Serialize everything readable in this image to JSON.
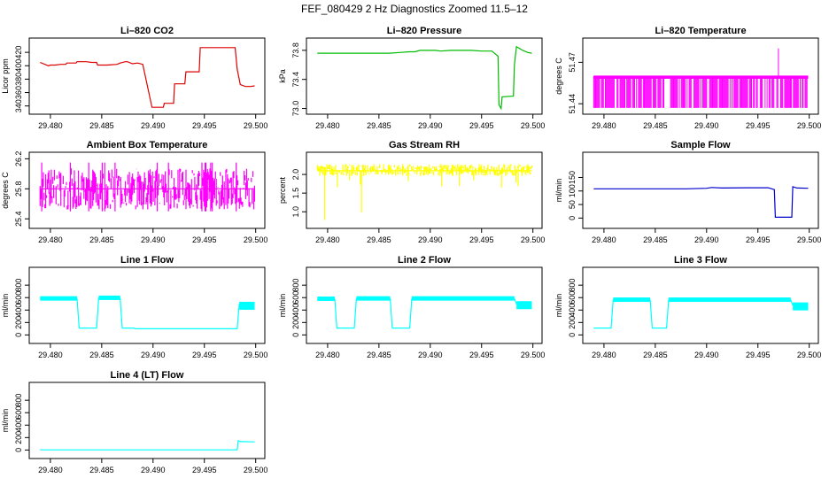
{
  "page_title": "FEF_080429  2 Hz Diagnostics Zoomed 11.5–12",
  "chart_data": [
    {
      "type": "line",
      "title": "Li–820 CO2",
      "ylabel": "Licor ppm",
      "color": "#dd0000",
      "xlim": [
        29.4788,
        29.5002
      ],
      "ylim": [
        333,
        436
      ],
      "yticks": [
        340,
        360,
        380,
        400,
        420
      ],
      "xticks": [
        "29.480",
        "29.485",
        "29.490",
        "29.495",
        "29.500"
      ],
      "series": [
        {
          "x": [
            29.479,
            29.4798,
            29.48,
            29.4805,
            29.481,
            29.4815,
            29.4816,
            29.4825,
            29.4826,
            29.4835,
            29.484,
            29.4845,
            29.4846,
            29.4855,
            29.4865,
            29.4868,
            29.4873,
            29.4875,
            29.488,
            29.4885,
            29.489,
            29.4899,
            29.49,
            29.4901,
            29.491,
            29.4911,
            29.492,
            29.4921,
            29.4931,
            29.4932,
            29.4945,
            29.4946,
            29.4975,
            29.498,
            29.4982,
            29.4985,
            29.499,
            29.4995,
            29.4999
          ],
          "y": [
            405,
            400,
            401,
            401,
            402,
            402,
            404,
            404,
            406,
            406,
            405,
            405,
            401,
            401,
            402,
            404,
            406,
            406,
            403,
            404,
            402,
            338,
            338,
            338,
            338,
            344,
            344,
            373,
            373,
            391,
            391,
            427,
            427,
            427,
            395,
            372,
            369,
            369,
            370
          ]
        }
      ]
    },
    {
      "type": "line",
      "title": "Li–820 Pressure",
      "ylabel": "kPa",
      "color": "#00bb00",
      "xlim": [
        29.4788,
        29.5002
      ],
      "ylim": [
        72.97,
        73.92
      ],
      "yticks": [
        "73.0",
        "73.4",
        "73.8"
      ],
      "xticks": [
        "29.480",
        "29.485",
        "29.490",
        "29.495",
        "29.500"
      ],
      "series": [
        {
          "x": [
            29.479,
            29.48,
            29.481,
            29.482,
            29.483,
            29.484,
            29.485,
            29.486,
            29.487,
            29.488,
            29.4885,
            29.489,
            29.4895,
            29.49,
            29.4905,
            29.491,
            29.492,
            29.493,
            29.494,
            29.495,
            29.496,
            29.4966,
            29.4967,
            29.4969,
            29.497,
            29.4981,
            29.4982,
            29.4984,
            29.499,
            29.4995,
            29.4999
          ],
          "y": [
            73.76,
            73.76,
            73.76,
            73.76,
            73.76,
            73.76,
            73.76,
            73.76,
            73.77,
            73.78,
            73.78,
            73.8,
            73.8,
            73.8,
            73.8,
            73.79,
            73.8,
            73.8,
            73.8,
            73.79,
            73.79,
            73.72,
            73.05,
            73.0,
            73.16,
            73.17,
            73.6,
            73.85,
            73.8,
            73.77,
            73.76
          ]
        }
      ]
    },
    {
      "type": "line",
      "title": "Li–820 Temperature",
      "ylabel": "degrees C",
      "color": "#ff00ff",
      "xlim": [
        29.4788,
        29.5002
      ],
      "ylim": [
        51.435,
        51.485
      ],
      "yticks": [
        "51.44",
        "51.47"
      ],
      "xticks": [
        "29.480",
        "29.485",
        "29.490",
        "29.495",
        "29.500"
      ],
      "series": [
        {
          "x": [
            29.479,
            29.4999
          ],
          "y": [
            51.46,
            51.46
          ]
        }
      ]
    },
    {
      "type": "line",
      "title": "Ambient Box Temperature",
      "ylabel": "degrees C",
      "color": "#ff00ff",
      "xlim": [
        29.4788,
        29.5002
      ],
      "ylim": [
        25.32,
        26.24
      ],
      "yticks": [
        "25.4",
        "25.8",
        "26.2"
      ],
      "xticks": [
        "29.480",
        "29.485",
        "29.490",
        "29.495",
        "29.500"
      ],
      "series": [
        {
          "x": [
            29.479,
            29.4999
          ],
          "y": [
            25.8,
            25.8
          ]
        }
      ]
    },
    {
      "type": "line",
      "title": "Gas Stream RH",
      "ylabel": "percent",
      "color": "#ffff00",
      "xlim": [
        29.4788,
        29.5002
      ],
      "ylim": [
        0.65,
        2.5
      ],
      "yticks": [
        "1.0",
        "1.5",
        "2.0"
      ],
      "xticks": [
        "29.480",
        "29.485",
        "29.490",
        "29.495",
        "29.500"
      ],
      "series": [
        {
          "x": [
            29.479,
            29.4999
          ],
          "y": [
            2.1,
            2.1
          ]
        }
      ]
    },
    {
      "type": "line",
      "title": "Sample Flow",
      "ylabel": "ml/min",
      "color": "#0000cc",
      "xlim": [
        29.4788,
        29.5002
      ],
      "ylim": [
        -25,
        230
      ],
      "yticks": [
        0,
        50,
        100,
        150
      ],
      "xticks": [
        "29.480",
        "29.485",
        "29.490",
        "29.495",
        "29.500"
      ],
      "series": [
        {
          "x": [
            29.479,
            29.485,
            29.488,
            29.49,
            29.4905,
            29.4915,
            29.494,
            29.496,
            29.4966,
            29.4967,
            29.4983,
            29.4984,
            29.4988,
            29.4999
          ],
          "y": [
            108,
            108,
            108,
            110,
            113,
            111,
            112,
            112,
            105,
            3,
            3,
            116,
            111,
            110
          ]
        }
      ]
    },
    {
      "type": "line",
      "title": "Line 1 Flow",
      "ylabel": "ml/min",
      "color": "#00ffff",
      "xlim": [
        29.4788,
        29.5002
      ],
      "ylim": [
        -80,
        1030
      ],
      "yticks": [
        0,
        200,
        400,
        600,
        800
      ],
      "xticks": [
        "29.480",
        "29.485",
        "29.490",
        "29.495",
        "29.500"
      ],
      "series": [
        {
          "x": [
            29.479,
            29.4826,
            29.4828,
            29.4845,
            29.4847,
            29.4868,
            29.487,
            29.4881,
            29.4883,
            29.4982,
            29.4984,
            29.4999
          ],
          "y": [
            580,
            580,
            110,
            110,
            590,
            590,
            110,
            110,
            100,
            100,
            490,
            490
          ]
        }
      ]
    },
    {
      "type": "line",
      "title": "Line 2 Flow",
      "ylabel": "ml/min",
      "color": "#00ffff",
      "xlim": [
        29.4788,
        29.5002
      ],
      "ylim": [
        -80,
        1030
      ],
      "yticks": [
        0,
        200,
        400,
        600,
        800
      ],
      "xticks": [
        "29.480",
        "29.485",
        "29.490",
        "29.495",
        "29.500"
      ],
      "series": [
        {
          "x": [
            29.479,
            29.4807,
            29.4809,
            29.4826,
            29.4828,
            29.4861,
            29.4863,
            29.488,
            29.4882,
            29.4982,
            29.4984,
            29.4999
          ],
          "y": [
            575,
            575,
            110,
            110,
            580,
            580,
            110,
            110,
            580,
            580,
            500,
            500
          ]
        }
      ]
    },
    {
      "type": "line",
      "title": "Line 3 Flow",
      "ylabel": "ml/min",
      "color": "#00ffff",
      "xlim": [
        29.4788,
        29.5002
      ],
      "ylim": [
        -80,
        1030
      ],
      "yticks": [
        0,
        200,
        400,
        600,
        800
      ],
      "xticks": [
        "29.480",
        "29.485",
        "29.490",
        "29.495",
        "29.500"
      ],
      "series": [
        {
          "x": [
            29.479,
            29.4807,
            29.4809,
            29.4845,
            29.4847,
            29.4861,
            29.4863,
            29.4982,
            29.4984,
            29.4999
          ],
          "y": [
            110,
            110,
            560,
            560,
            110,
            110,
            560,
            560,
            480,
            480
          ]
        }
      ]
    },
    {
      "type": "line",
      "title": "Line 4 (LT) Flow",
      "ylabel": "ml/min",
      "color": "#00ffff",
      "xlim": [
        29.4788,
        29.5002
      ],
      "ylim": [
        -80,
        1030
      ],
      "yticks": [
        0,
        200,
        400,
        600,
        800
      ],
      "xticks": [
        "29.480",
        "29.485",
        "29.490",
        "29.495",
        "29.500"
      ],
      "series": [
        {
          "x": [
            29.479,
            29.4982,
            29.4983,
            29.4985,
            29.4999
          ],
          "y": [
            2,
            2,
            150,
            135,
            130
          ]
        }
      ]
    }
  ]
}
